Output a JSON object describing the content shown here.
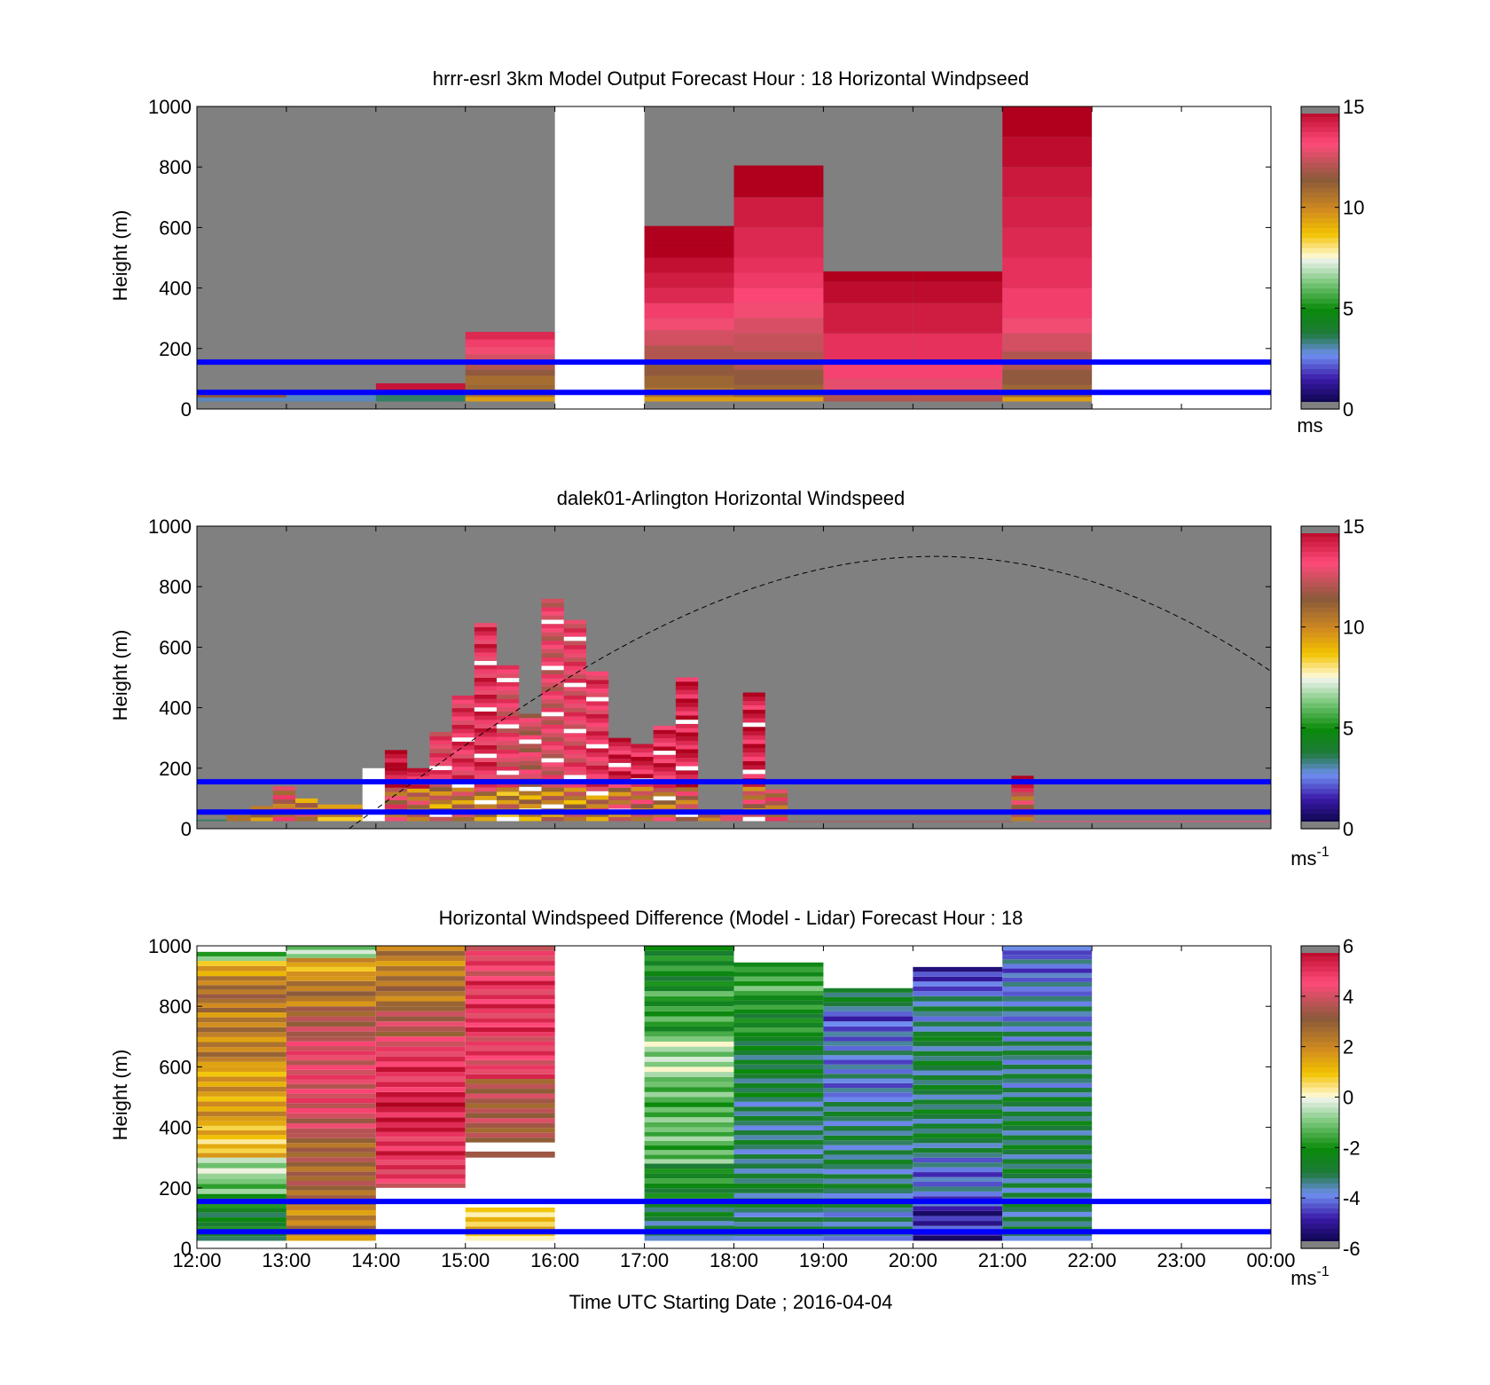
{
  "figure": {
    "xlabel": "Time UTC  Starting Date ; 2016-04-04",
    "x_tick_labels": [
      "12:00",
      "13:00",
      "14:00",
      "15:00",
      "16:00",
      "17:00",
      "18:00",
      "19:00",
      "20:00",
      "21:00",
      "22:00",
      "23:00",
      "00:00"
    ]
  },
  "chart_data": [
    {
      "type": "heatmap",
      "title": "hrrr-esrl 3km Model Output   Forecast Hour : 18 Horizontal Windpseed",
      "ylabel": "Height (m)",
      "xlim_hours": [
        12,
        24
      ],
      "ylim": [
        0,
        1000
      ],
      "y_ticks": [
        0,
        200,
        400,
        600,
        800,
        1000
      ],
      "colorbar": {
        "min": 0,
        "max": 15,
        "ticks": [
          0,
          5,
          10,
          15
        ],
        "unit_base": "ms",
        "unit_sup": ""
      },
      "missing_color": "#808080",
      "reference_lines_m": [
        55,
        155
      ],
      "columns": [
        {
          "t0": 12,
          "t1": 13,
          "top": 60,
          "cells": [
            [
              25,
              38,
              3.0
            ],
            [
              38,
              60,
              11.5
            ]
          ]
        },
        {
          "t0": 13,
          "t1": 14,
          "top": 55,
          "cells": [
            [
              25,
              55,
              3.0
            ]
          ]
        },
        {
          "t0": 14,
          "t1": 15,
          "top": 85,
          "cells": [
            [
              25,
              55,
              3.5
            ],
            [
              55,
              85,
              14.5
            ]
          ]
        },
        {
          "t0": 15,
          "t1": 16,
          "top": 255,
          "cells": [
            [
              25,
              40,
              9.5
            ],
            [
              40,
              60,
              10.5
            ],
            [
              60,
              80,
              11.0
            ],
            [
              80,
              110,
              10.8
            ],
            [
              110,
              130,
              11.5
            ],
            [
              130,
              160,
              12.0
            ],
            [
              160,
              180,
              12.5
            ],
            [
              180,
              205,
              13.0
            ],
            [
              205,
              230,
              13.5
            ],
            [
              230,
              255,
              14.0
            ]
          ]
        },
        {
          "t0": 16,
          "t1": 17,
          "missing": true
        },
        {
          "t0": 17,
          "t1": 18,
          "top": 605,
          "cells": [
            [
              25,
              40,
              9.5
            ],
            [
              40,
              70,
              10.5
            ],
            [
              70,
              110,
              11.0
            ],
            [
              110,
              160,
              11.5
            ],
            [
              160,
              210,
              12.0
            ],
            [
              210,
              260,
              12.5
            ],
            [
              260,
              300,
              13.0
            ],
            [
              300,
              350,
              13.5
            ],
            [
              350,
              400,
              14.0
            ],
            [
              400,
              450,
              14.3
            ],
            [
              450,
              500,
              14.6
            ],
            [
              500,
              550,
              15.0
            ],
            [
              550,
              605,
              15.0
            ]
          ]
        },
        {
          "t0": 18,
          "t1": 19,
          "top": 805,
          "cells": [
            [
              25,
              40,
              9.5
            ],
            [
              40,
              80,
              11.0
            ],
            [
              80,
              130,
              11.5
            ],
            [
              130,
              190,
              12.0
            ],
            [
              190,
              250,
              12.3
            ],
            [
              250,
              300,
              12.6
            ],
            [
              300,
              350,
              13.0
            ],
            [
              350,
              400,
              13.3
            ],
            [
              400,
              450,
              13.6
            ],
            [
              450,
              500,
              13.8
            ],
            [
              500,
              600,
              14.0
            ],
            [
              600,
              700,
              14.3
            ],
            [
              700,
              805,
              15.0
            ]
          ]
        },
        {
          "t0": 19,
          "t1": 20,
          "top": 455,
          "cells": [
            [
              25,
              60,
              12.0
            ],
            [
              60,
              100,
              12.8
            ],
            [
              100,
              155,
              13.4
            ],
            [
              155,
              250,
              13.8
            ],
            [
              250,
              350,
              14.3
            ],
            [
              350,
              420,
              14.7
            ],
            [
              420,
              455,
              15.0
            ]
          ]
        },
        {
          "t0": 20,
          "t1": 21,
          "top": 455,
          "cells": [
            [
              25,
              60,
              12.0
            ],
            [
              60,
              100,
              12.8
            ],
            [
              100,
              155,
              13.4
            ],
            [
              155,
              250,
              13.8
            ],
            [
              250,
              350,
              14.3
            ],
            [
              350,
              420,
              14.7
            ],
            [
              420,
              455,
              15.0
            ]
          ]
        },
        {
          "t0": 21,
          "t1": 22,
          "top": 1000,
          "cells": [
            [
              25,
              40,
              9.5
            ],
            [
              40,
              80,
              11.0
            ],
            [
              80,
              130,
              11.5
            ],
            [
              130,
              190,
              12.0
            ],
            [
              190,
              250,
              12.5
            ],
            [
              250,
              300,
              13.0
            ],
            [
              300,
              400,
              13.5
            ],
            [
              400,
              500,
              13.8
            ],
            [
              500,
              600,
              14.0
            ],
            [
              600,
              700,
              14.2
            ],
            [
              700,
              800,
              14.4
            ],
            [
              800,
              900,
              14.7
            ],
            [
              900,
              1000,
              15.0
            ]
          ]
        },
        {
          "t0": 22,
          "t1": 24,
          "missing": true
        }
      ]
    },
    {
      "type": "heatmap",
      "title": "dalek01-Arlington  Horizontal Windspeed",
      "ylabel": "Height (m)",
      "xlim_hours": [
        12,
        24
      ],
      "ylim": [
        0,
        1000
      ],
      "y_ticks": [
        0,
        200,
        400,
        600,
        800,
        1000
      ],
      "colorbar": {
        "min": 0,
        "max": 15,
        "ticks": [
          0,
          5,
          10,
          15
        ],
        "unit_base": "ms",
        "unit_sup": "-1"
      },
      "missing_color": "#808080",
      "reference_lines_m": [
        55,
        155
      ],
      "boundary_curve": {
        "style": "dashed",
        "rise_hours": [
          13.7,
          14.5
        ],
        "peak_hour": 20.25,
        "peak_height": 900,
        "end_height": 520
      },
      "columns": [
        {
          "t0": 12.0,
          "t1": 12.33,
          "top": 30,
          "base": 8.0
        },
        {
          "t0": 12.33,
          "t1": 12.6,
          "top": 45,
          "base": 12.5
        },
        {
          "t0": 12.6,
          "t1": 12.85,
          "top": 75,
          "base": 13.0
        },
        {
          "t0": 12.85,
          "t1": 13.1,
          "top": 140,
          "base": 14.5
        },
        {
          "t0": 13.1,
          "t1": 13.35,
          "top": 100,
          "base": 13.5
        },
        {
          "t0": 13.35,
          "t1": 13.85,
          "top": 80,
          "base": 13.0
        },
        {
          "t0": 14.1,
          "t1": 14.35,
          "top": 260,
          "base": 14.8
        },
        {
          "t0": 14.35,
          "t1": 14.6,
          "top": 200,
          "base": 13.8
        },
        {
          "t0": 14.6,
          "t1": 14.85,
          "top": 320,
          "base": 13.2
        },
        {
          "t0": 14.85,
          "t1": 15.1,
          "top": 440,
          "base": 13.6
        },
        {
          "t0": 15.1,
          "t1": 15.35,
          "top": 680,
          "base": 13.8
        },
        {
          "t0": 15.35,
          "t1": 15.6,
          "top": 540,
          "base": 13.0
        },
        {
          "t0": 15.6,
          "t1": 15.85,
          "top": 380,
          "base": 12.4
        },
        {
          "t0": 15.85,
          "t1": 16.1,
          "top": 760,
          "base": 12.8
        },
        {
          "t0": 16.1,
          "t1": 16.35,
          "top": 690,
          "base": 13.2
        },
        {
          "t0": 16.35,
          "t1": 16.6,
          "top": 520,
          "base": 13.6
        },
        {
          "t0": 16.6,
          "t1": 16.85,
          "top": 300,
          "base": 14.0
        },
        {
          "t0": 16.85,
          "t1": 17.1,
          "top": 280,
          "base": 14.2
        },
        {
          "t0": 17.1,
          "t1": 17.35,
          "top": 340,
          "base": 14.0
        },
        {
          "t0": 17.35,
          "t1": 17.6,
          "top": 500,
          "base": 14.3
        },
        {
          "t0": 17.6,
          "t1": 17.85,
          "top": 60,
          "base": 14.5
        },
        {
          "t0": 17.85,
          "t1": 18.1,
          "top": 45,
          "base": 14.5
        },
        {
          "t0": 18.1,
          "t1": 18.35,
          "top": 450,
          "base": 14.2
        },
        {
          "t0": 18.35,
          "t1": 18.6,
          "top": 130,
          "base": 14.6
        },
        {
          "t0": 18.6,
          "t1": 21.1,
          "top": 25,
          "base": 14.8
        },
        {
          "t0": 21.1,
          "t1": 21.35,
          "top": 175,
          "base": 14.8
        },
        {
          "t0": 21.35,
          "t1": 24.0,
          "top": 25,
          "base": 14.8
        }
      ]
    },
    {
      "type": "heatmap",
      "title": "Horizontal Windspeed Difference (Model - Lidar) Forecast Hour : 18",
      "ylabel": "Height (m)",
      "xlim_hours": [
        12,
        24
      ],
      "ylim": [
        0,
        1000
      ],
      "y_ticks": [
        0,
        200,
        400,
        600,
        800,
        1000
      ],
      "colorbar": {
        "min": -6,
        "max": 6,
        "ticks": [
          -6,
          -4,
          -2,
          0,
          2,
          4,
          6
        ],
        "unit_base": "ms",
        "unit_sup": "-1"
      },
      "missing_color": "#808080",
      "reference_lines_m": [
        55,
        155
      ],
      "columns": [
        {
          "t0": 12,
          "t1": 13,
          "segments": [
            [
              25,
              180,
              -2.5
            ],
            [
              180,
              230,
              -1.0
            ],
            [
              230,
              300,
              -0.4
            ],
            [
              300,
              420,
              1.0
            ],
            [
              420,
              600,
              1.6
            ],
            [
              600,
              780,
              2.2
            ],
            [
              780,
              900,
              2.6
            ],
            [
              900,
              950,
              1.5
            ],
            [
              950,
              980,
              -1.5
            ]
          ]
        },
        {
          "t0": 13,
          "t1": 14,
          "segments": [
            [
              25,
              160,
              2.2
            ],
            [
              160,
              380,
              3.0
            ],
            [
              380,
              480,
              4.0
            ],
            [
              480,
              700,
              4.3
            ],
            [
              700,
              800,
              3.4
            ],
            [
              800,
              900,
              2.4
            ],
            [
              900,
              960,
              1.5
            ],
            [
              960,
              1000,
              -0.6
            ]
          ]
        },
        {
          "t0": 14,
          "t1": 15,
          "segments": [
            [
              200,
              260,
              4.5
            ],
            [
              260,
              400,
              5.0
            ],
            [
              400,
              500,
              5.5
            ],
            [
              500,
              600,
              5.0
            ],
            [
              600,
              700,
              4.6
            ],
            [
              700,
              800,
              3.6
            ],
            [
              800,
              900,
              2.5
            ],
            [
              900,
              1000,
              2.2
            ]
          ]
        },
        {
          "t0": 15,
          "t1": 16,
          "segments": [
            [
              25,
              135,
              0.9
            ],
            [
              300,
              320,
              3.0
            ],
            [
              350,
              560,
              3.4
            ],
            [
              560,
              700,
              4.6
            ],
            [
              700,
              900,
              4.9
            ],
            [
              900,
              1000,
              4.5
            ]
          ]
        },
        {
          "t0": 17,
          "t1": 18,
          "segments": [
            [
              25,
              60,
              -3.0
            ],
            [
              60,
              150,
              -3.0
            ],
            [
              150,
              280,
              -2.2
            ],
            [
              280,
              400,
              -1.3
            ],
            [
              400,
              550,
              -1.4
            ],
            [
              550,
              700,
              -0.6
            ],
            [
              700,
              850,
              -1.8
            ],
            [
              850,
              950,
              -2.2
            ],
            [
              950,
              1000,
              -2.4
            ]
          ]
        },
        {
          "t0": 18,
          "t1": 19,
          "segments": [
            [
              25,
              150,
              -3.2
            ],
            [
              150,
              280,
              -3.0
            ],
            [
              280,
              500,
              -3.2
            ],
            [
              500,
              700,
              -2.8
            ],
            [
              700,
              820,
              -2.2
            ],
            [
              820,
              930,
              -1.6
            ],
            [
              930,
              945,
              -2.6
            ]
          ]
        },
        {
          "t0": 19,
          "t1": 20,
          "segments": [
            [
              25,
              150,
              -3.4
            ],
            [
              150,
              500,
              -3.2
            ],
            [
              500,
              700,
              -3.8
            ],
            [
              700,
              800,
              -4.2
            ],
            [
              800,
              860,
              -3.0
            ]
          ]
        },
        {
          "t0": 20,
          "t1": 21,
          "segments": [
            [
              25,
              140,
              -4.8
            ],
            [
              140,
              300,
              -4.0
            ],
            [
              300,
              700,
              -3.0
            ],
            [
              700,
              850,
              -3.4
            ],
            [
              850,
              930,
              -4.6
            ]
          ]
        },
        {
          "t0": 21,
          "t1": 22,
          "segments": [
            [
              25,
              200,
              -3.1
            ],
            [
              200,
              500,
              -3.0
            ],
            [
              500,
              700,
              -3.3
            ],
            [
              700,
              850,
              -3.6
            ],
            [
              850,
              970,
              -4.0
            ],
            [
              970,
              1000,
              -3.8
            ]
          ]
        }
      ]
    }
  ]
}
